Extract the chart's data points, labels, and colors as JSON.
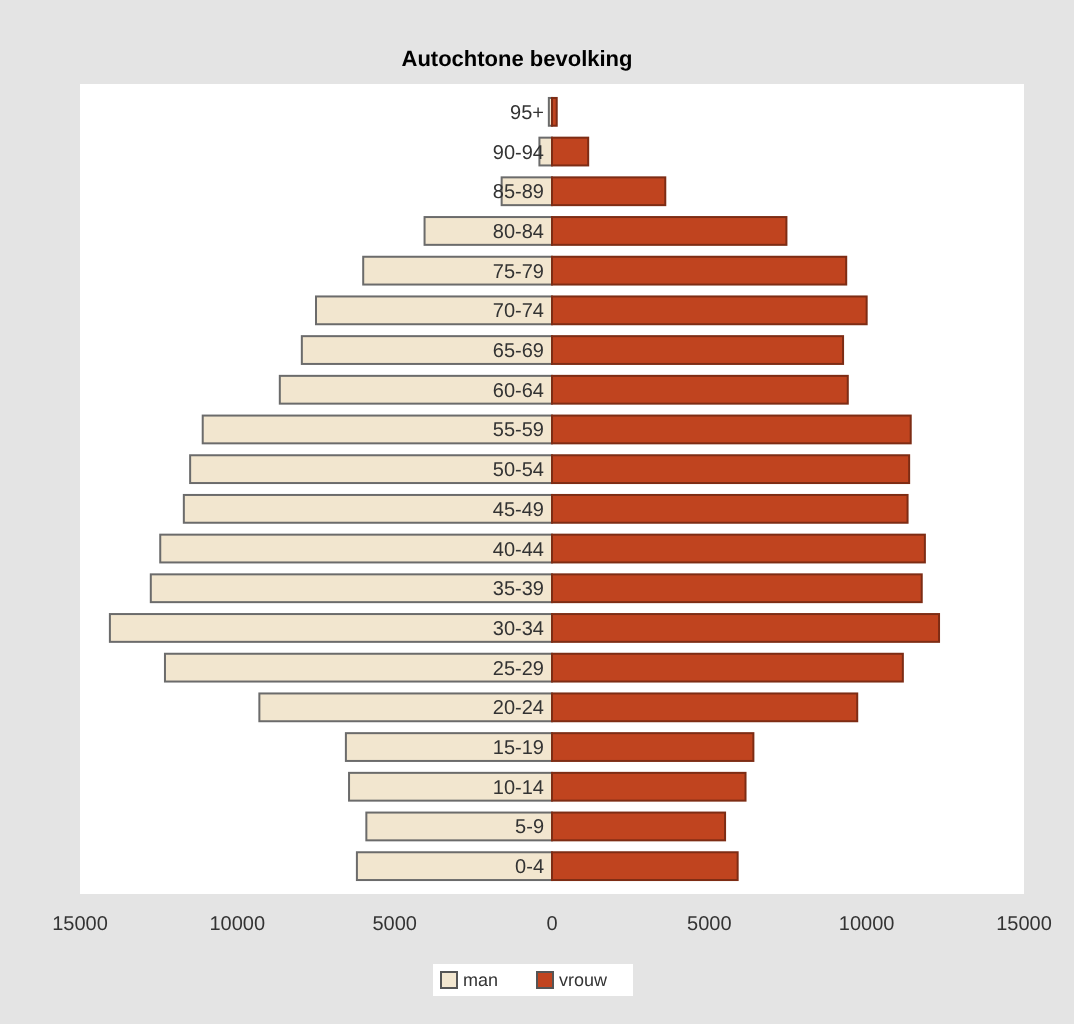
{
  "chart_data": {
    "type": "bar",
    "orientation": "horizontal",
    "title": "Autochtone bevolking",
    "categories": [
      "95+",
      "90-94",
      "85-89",
      "80-84",
      "75-79",
      "70-74",
      "65-69",
      "60-64",
      "55-59",
      "50-54",
      "45-49",
      "40-44",
      "35-39",
      "30-34",
      "25-29",
      "20-24",
      "15-19",
      "10-14",
      "5-9",
      "0-4"
    ],
    "series": [
      {
        "name": "man",
        "color": "#f2e6cf",
        "values": [
          -100,
          -400,
          -1600,
          -4050,
          -6000,
          -7500,
          -7950,
          -8650,
          -11100,
          -11500,
          -11700,
          -12450,
          -12750,
          -14050,
          -12300,
          -9300,
          -6550,
          -6450,
          -5900,
          -6200
        ]
      },
      {
        "name": "vrouw",
        "color": "#c0441f",
        "values": [
          150,
          1150,
          3600,
          7450,
          9350,
          10000,
          9250,
          9400,
          11400,
          11350,
          11300,
          11850,
          11750,
          12300,
          11150,
          9700,
          6400,
          6150,
          5500,
          5900
        ]
      }
    ],
    "xlim": [
      -15000,
      15000
    ],
    "xticks": [
      {
        "value": -15000,
        "label": "15000"
      },
      {
        "value": -10000,
        "label": "10000"
      },
      {
        "value": -5000,
        "label": "5000"
      },
      0,
      5000,
      10000,
      15000
    ],
    "stacked": true,
    "legend": "bottom"
  }
}
